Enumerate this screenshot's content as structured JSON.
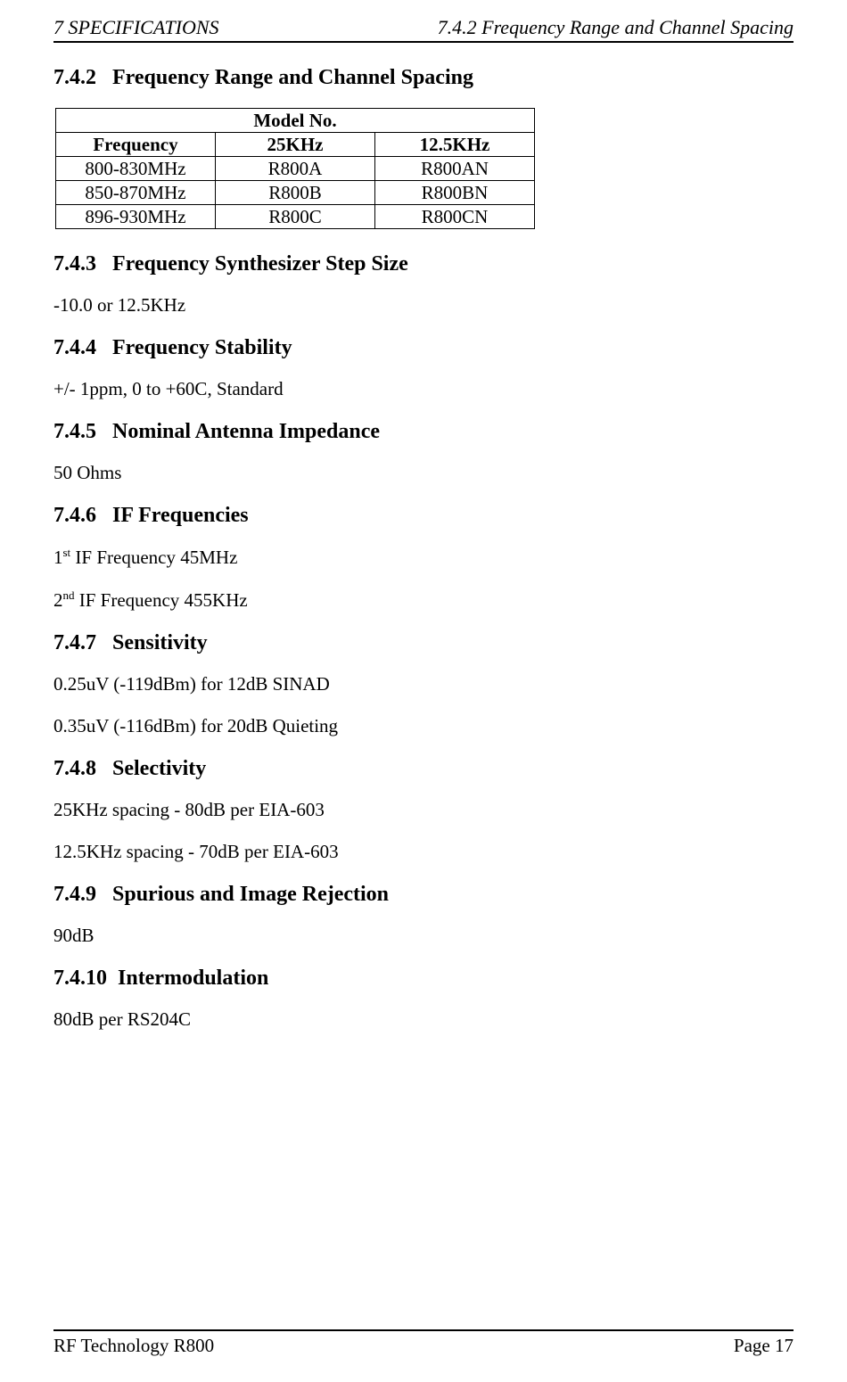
{
  "header": {
    "left": "7 SPECIFICATIONS",
    "right": "7.4.2 Frequency Range and Channel Spacing"
  },
  "sections": {
    "s742": {
      "num": "7.4.2",
      "title": "Frequency Range and Channel Spacing"
    },
    "s743": {
      "num": "7.4.3",
      "title": "Frequency Synthesizer Step Size",
      "body": "-10.0 or 12.5KHz"
    },
    "s744": {
      "num": "7.4.4",
      "title": "Frequency Stability",
      "body": "+/- 1ppm, 0 to +60C, Standard"
    },
    "s745": {
      "num": "7.4.5",
      "title": "Nominal Antenna Impedance",
      "body": "50 Ohms"
    },
    "s746": {
      "num": "7.4.6",
      "title": "IF Frequencies",
      "line1_pre": "1",
      "line1_sup": "st",
      "line1_post": " IF Frequency 45MHz",
      "line2_pre": "2",
      "line2_sup": "nd",
      "line2_post": " IF Frequency 455KHz"
    },
    "s747": {
      "num": "7.4.7",
      "title": "Sensitivity",
      "line1": "0.25uV (-119dBm) for 12dB SINAD",
      "line2": "0.35uV (-116dBm) for 20dB Quieting"
    },
    "s748": {
      "num": "7.4.8",
      "title": "Selectivity",
      "line1": "25KHz spacing - 80dB per EIA-603",
      "line2": "12.5KHz spacing - 70dB per EIA-603"
    },
    "s749": {
      "num": "7.4.9",
      "title": "Spurious and Image Rejection",
      "body": "90dB"
    },
    "s7410": {
      "num": "7.4.10",
      "title": "Intermodulation",
      "body": "80dB per RS204C"
    }
  },
  "table": {
    "caption": "Model No.",
    "headers": {
      "c1": "Frequency",
      "c2": "25KHz",
      "c3": "12.5KHz"
    },
    "rows": [
      {
        "c1": "800-830MHz",
        "c2": "R800A",
        "c3": "R800AN"
      },
      {
        "c1": "850-870MHz",
        "c2": "R800B",
        "c3": "R800BN"
      },
      {
        "c1": "896-930MHz",
        "c2": "R800C",
        "c3": "R800CN"
      }
    ]
  },
  "footer": {
    "left": "RF Technology  R800",
    "right": "Page 17"
  }
}
